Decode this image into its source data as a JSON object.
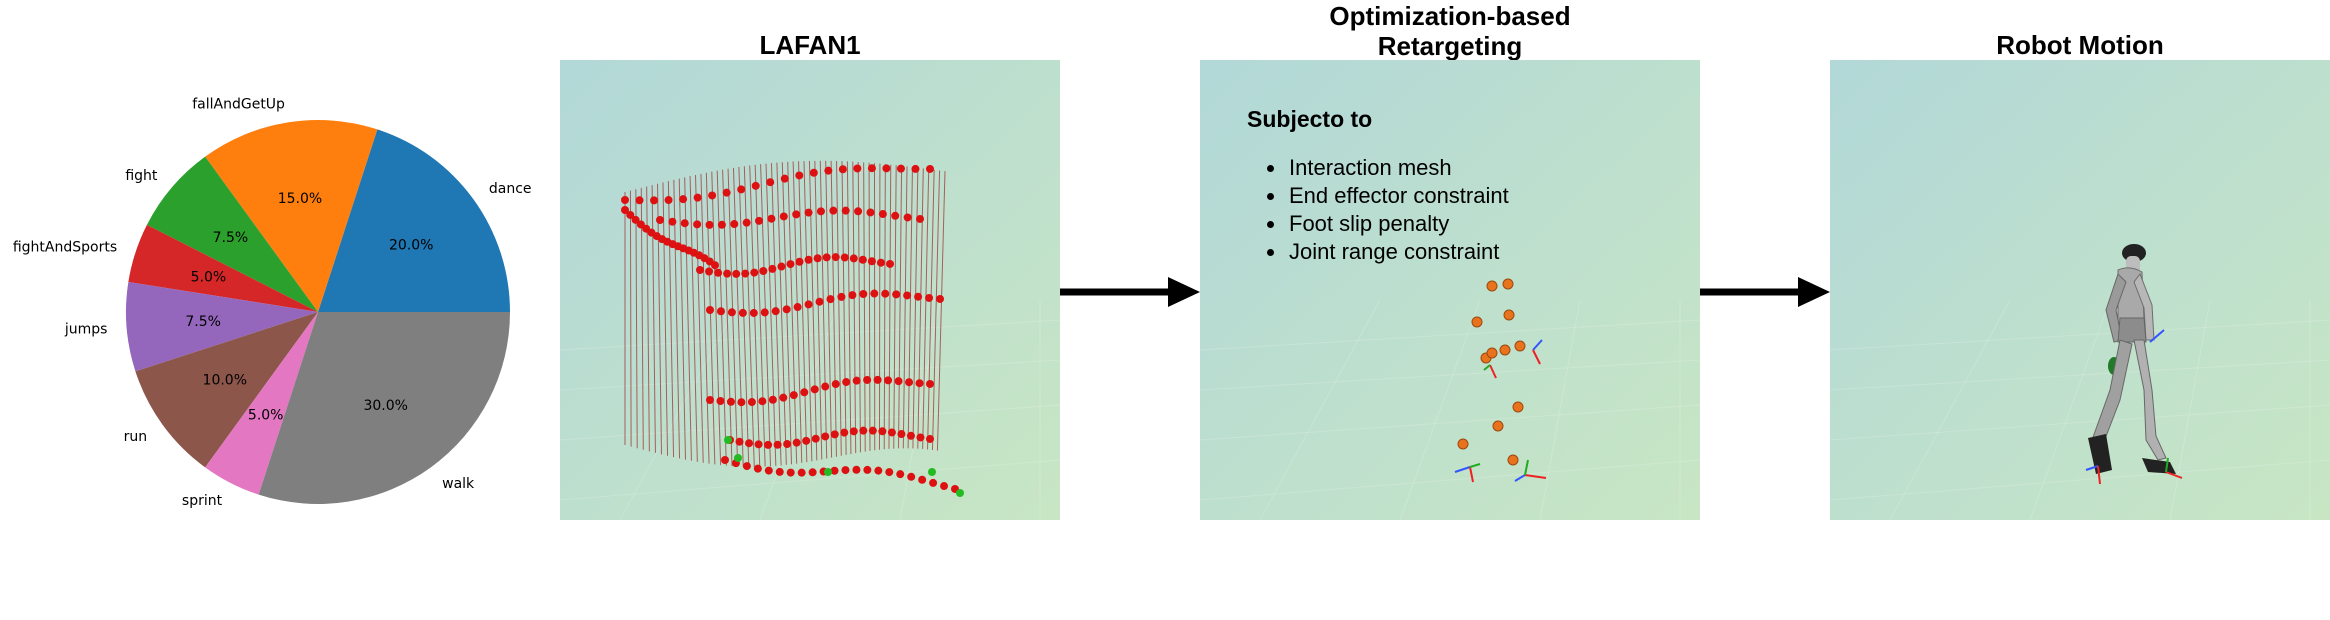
{
  "chart_data": {
    "type": "pie",
    "categories": [
      "dance",
      "fallAndGetUp",
      "fight",
      "fightAndSports",
      "jumps",
      "run",
      "sprint",
      "walk"
    ],
    "values": [
      20.0,
      15.0,
      7.5,
      5.0,
      7.5,
      10.0,
      5.0,
      30.0
    ],
    "value_labels": [
      "20.0%",
      "15.0%",
      "7.5%",
      "5.0%",
      "7.5%",
      "10.0%",
      "5.0%",
      "30.0%"
    ],
    "colors": [
      "#1f77b4",
      "#ff7f0e",
      "#2ca02c",
      "#d62728",
      "#9467bd",
      "#8c564b",
      "#e377c2",
      "#7f7f7f"
    ],
    "start_angle_deg": 0,
    "direction": "counterclockwise",
    "legend": "none",
    "title": ""
  },
  "panels": {
    "lafan": {
      "title": "LAFAN1"
    },
    "retarget": {
      "title_line1": "Optimization-based",
      "title_line2": "Retargeting",
      "subject_heading": "Subjecto to",
      "constraints": [
        "Interaction mesh",
        "End effector constraint",
        "Foot slip penalty",
        "Joint range constraint"
      ]
    },
    "robot": {
      "title": "Robot Motion"
    }
  },
  "colors": {
    "scene_top": "#b4dad9",
    "scene_bottom": "#c6e4c6",
    "marker_red": "#dd1111",
    "mesh_line": "#9b2a2a",
    "marker_green": "#22bb22",
    "marker_orange": "#e8731c",
    "arrow": "#000000"
  }
}
